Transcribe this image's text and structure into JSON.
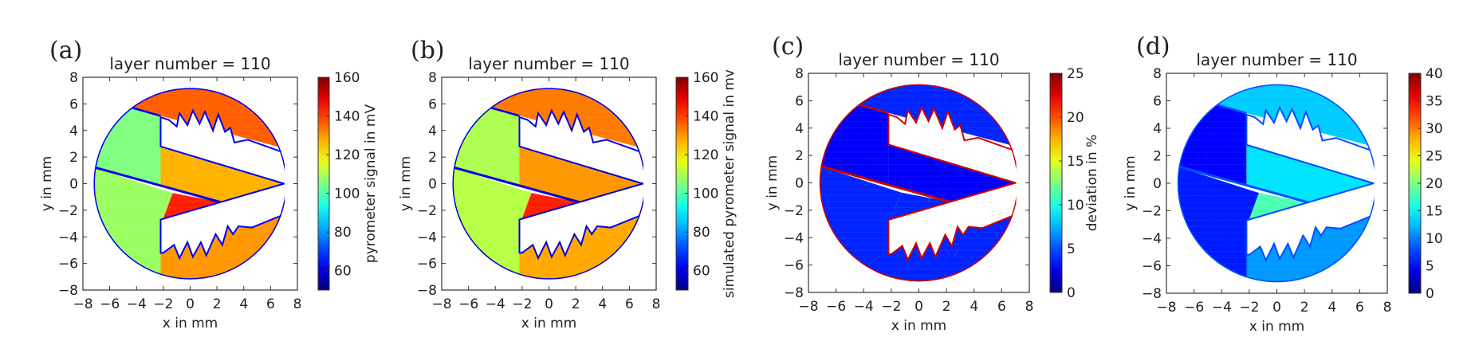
{
  "chart_data": [
    {
      "panel_label": "(a)",
      "type": "heatmap",
      "title": "layer number = 110",
      "xlabel": "x in mm",
      "ylabel": "y in mm",
      "xlim": [
        -8,
        8
      ],
      "ylim": [
        -8,
        8
      ],
      "xticks": [
        "−8",
        "−6",
        "−4",
        "−2",
        "0",
        "2",
        "4",
        "6",
        "8"
      ],
      "yticks": [
        "−8",
        "−6",
        "−4",
        "−2",
        "0",
        "2",
        "4",
        "6",
        "8"
      ],
      "colorbar": {
        "label": "pyrometer signal in mV",
        "range": [
          50,
          160
        ],
        "ticks": [
          "60",
          "80",
          "100",
          "120",
          "140",
          "160"
        ],
        "colormap": "jet"
      },
      "region_values": {
        "left_upper": 105,
        "top_strip": 136,
        "wedge": 127,
        "lower_triangle": 143,
        "left_lower": 108,
        "bottom_strip": 130,
        "edges": 62
      }
    },
    {
      "panel_label": "(b)",
      "type": "heatmap",
      "title": "layer number = 110",
      "xlabel": "x in mm",
      "ylabel": "y in mm",
      "xlim": [
        -8,
        8
      ],
      "ylim": [
        -8,
        8
      ],
      "xticks": [
        "−8",
        "−6",
        "−4",
        "−2",
        "0",
        "2",
        "4",
        "6",
        "8"
      ],
      "yticks": [
        "−8",
        "−6",
        "−4",
        "−2",
        "0",
        "2",
        "4",
        "6",
        "8"
      ],
      "colorbar": {
        "label": "simulated pyrometer signal in mv",
        "range": [
          50,
          160
        ],
        "ticks": [
          "60",
          "80",
          "100",
          "120",
          "140",
          "160"
        ],
        "colormap": "jet"
      },
      "region_values": {
        "left_upper": 110,
        "top_strip": 133,
        "wedge": 130,
        "lower_triangle": 143,
        "left_lower": 111,
        "bottom_strip": 128,
        "edges": 60
      }
    },
    {
      "panel_label": "(c)",
      "type": "heatmap",
      "title": "layer number = 110",
      "xlabel": "x in mm",
      "ylabel": "y in mm",
      "xlim": [
        -8,
        8
      ],
      "ylim": [
        -8,
        8
      ],
      "xticks": [
        "−8",
        "−6",
        "−4",
        "−2",
        "0",
        "2",
        "4",
        "6",
        "8"
      ],
      "yticks": [
        "−8",
        "−6",
        "−4",
        "−2",
        "0",
        "2",
        "4",
        "6",
        "8"
      ],
      "colorbar": {
        "label": "deviation in %",
        "range": [
          0,
          25
        ],
        "ticks": [
          "0",
          "5",
          "10",
          "15",
          "20",
          "25"
        ],
        "colormap": "jet"
      },
      "region_values": {
        "left_upper": 3,
        "top_strip": 4,
        "wedge": 3,
        "lower_triangle": 4,
        "left_lower": 4,
        "bottom_strip": 4,
        "edges": 23
      }
    },
    {
      "panel_label": "(d)",
      "type": "heatmap",
      "title": "layer number = 110",
      "xlabel": "x in mm",
      "ylabel": "y in mm",
      "xlim": [
        -8,
        8
      ],
      "ylim": [
        -8,
        8
      ],
      "xticks": [
        "−8",
        "−6",
        "−4",
        "−2",
        "0",
        "2",
        "4",
        "6",
        "8"
      ],
      "yticks": [
        "−8",
        "−6",
        "−4",
        "−2",
        "0",
        "2",
        "4",
        "6",
        "8"
      ],
      "colorbar": {
        "label": "",
        "range": [
          0,
          40
        ],
        "ticks": [
          "0",
          "5",
          "10",
          "15",
          "20",
          "25",
          "30",
          "35",
          "40"
        ],
        "colormap": "jet"
      },
      "region_values": {
        "left_upper": 5,
        "top_strip": 13,
        "wedge": 14,
        "lower_triangle": 18,
        "left_lower": 6,
        "bottom_strip": 11,
        "edges": 8
      }
    }
  ]
}
